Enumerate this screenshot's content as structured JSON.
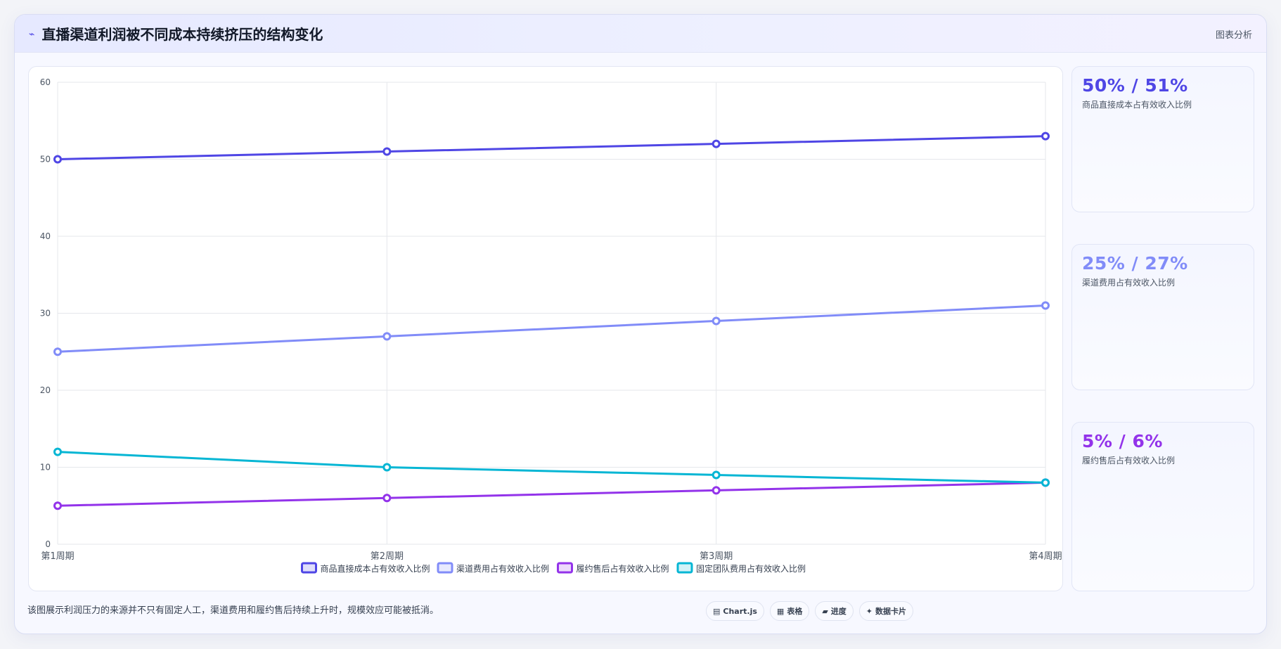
{
  "header": {
    "icon": "chart-line-icon",
    "title": "直播渠道利润被不同成本持续挤压的结构变化",
    "tag": "图表分析"
  },
  "kpis": [
    {
      "value": "50% / 51%",
      "label": "商品直接成本占有效收入比例",
      "color": "#4f46e5"
    },
    {
      "value": "25% / 27%",
      "label": "渠道费用占有效收入比例",
      "color": "#818cf8"
    },
    {
      "value": "5% / 6%",
      "label": "履约售后占有效收入比例",
      "color": "#9333ea"
    }
  ],
  "footer": {
    "text": "该图展示利润压力的来源并不只有固定人工，渠道费用和履约售后持续上升时，规模效应可能被抵消。",
    "pills": [
      {
        "icon": "chart-icon",
        "glyph": "▤",
        "label": "Chart.js"
      },
      {
        "icon": "table-icon",
        "glyph": "▦",
        "label": "表格"
      },
      {
        "icon": "progress-icon",
        "glyph": "▰",
        "label": "进度"
      },
      {
        "icon": "card-icon",
        "glyph": "✦",
        "label": "数据卡片"
      }
    ]
  },
  "chart_data": {
    "type": "line",
    "title": "",
    "xlabel": "",
    "ylabel": "",
    "categories": [
      "第1周期",
      "第2周期",
      "第3周期",
      "第4周期"
    ],
    "ylim": [
      0,
      60
    ],
    "yticks": [
      0,
      10,
      20,
      30,
      40,
      50,
      60
    ],
    "grid": true,
    "legend_position": "bottom",
    "series": [
      {
        "name": "商品直接成本占有效收入比例",
        "values": [
          50,
          51,
          52,
          53
        ],
        "color": "#4f46e5"
      },
      {
        "name": "渠道费用占有效收入比例",
        "values": [
          25,
          27,
          29,
          31
        ],
        "color": "#818cf8"
      },
      {
        "name": "履约售后占有效收入比例",
        "values": [
          5,
          6,
          7,
          8
        ],
        "color": "#9333ea"
      },
      {
        "name": "固定团队费用占有效收入比例",
        "values": [
          12,
          10,
          9,
          8
        ],
        "color": "#06b6d4"
      }
    ]
  }
}
